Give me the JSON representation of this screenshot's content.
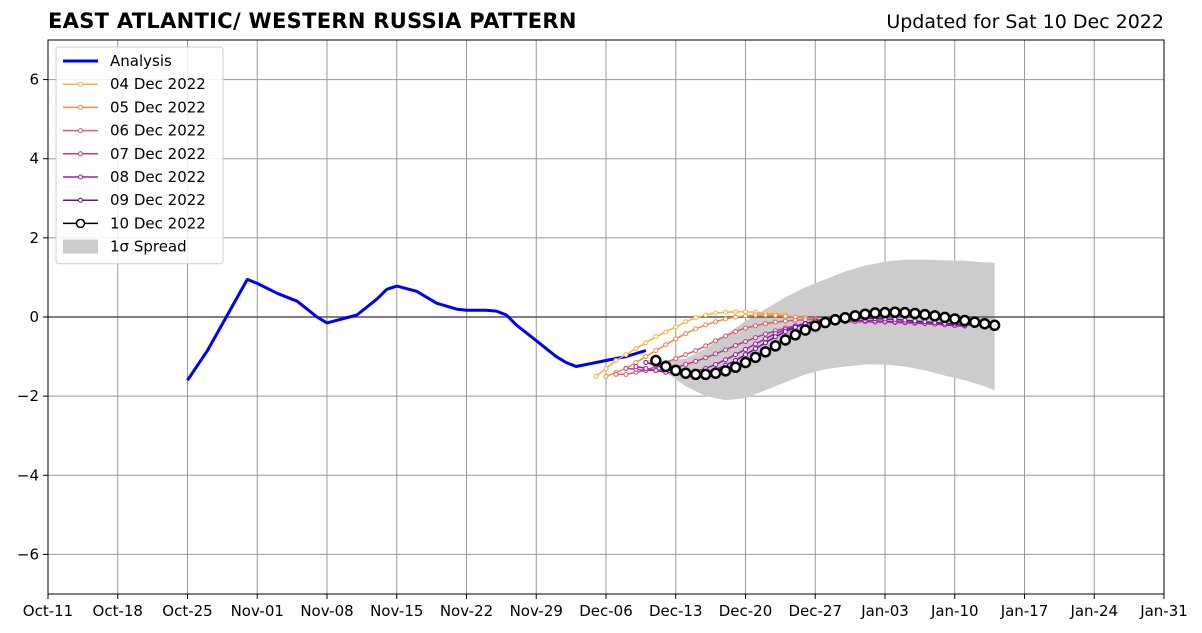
{
  "chart_data": {
    "type": "line",
    "title": "EAST ATLANTIC/ WESTERN RUSSIA PATTERN",
    "subtitle": "Updated for Sat 10 Dec 2022",
    "xlabel": "",
    "ylabel": "",
    "xlim": [
      "2022-10-11",
      "2023-01-31"
    ],
    "ylim": [
      -7,
      7
    ],
    "grid": true,
    "legend_position": "top-left",
    "x_ticks": [
      {
        "date": "2022-10-11",
        "label": "Oct-11"
      },
      {
        "date": "2022-10-18",
        "label": "Oct-18"
      },
      {
        "date": "2022-10-25",
        "label": "Oct-25"
      },
      {
        "date": "2022-11-01",
        "label": "Nov-01"
      },
      {
        "date": "2022-11-08",
        "label": "Nov-08"
      },
      {
        "date": "2022-11-15",
        "label": "Nov-15"
      },
      {
        "date": "2022-11-22",
        "label": "Nov-22"
      },
      {
        "date": "2022-11-29",
        "label": "Nov-29"
      },
      {
        "date": "2022-12-06",
        "label": "Dec-06"
      },
      {
        "date": "2022-12-13",
        "label": "Dec-13"
      },
      {
        "date": "2022-12-20",
        "label": "Dec-20"
      },
      {
        "date": "2022-12-27",
        "label": "Dec-27"
      },
      {
        "date": "2023-01-03",
        "label": "Jan-03"
      },
      {
        "date": "2023-01-10",
        "label": "Jan-10"
      },
      {
        "date": "2023-01-17",
        "label": "Jan-17"
      },
      {
        "date": "2023-01-24",
        "label": "Jan-24"
      },
      {
        "date": "2023-01-31",
        "label": "Jan-31"
      }
    ],
    "y_ticks": [
      {
        "value": 6,
        "label": "6"
      },
      {
        "value": 4,
        "label": "4"
      },
      {
        "value": 2,
        "label": "2"
      },
      {
        "value": 0,
        "label": "0"
      },
      {
        "value": -2,
        "label": "−2"
      },
      {
        "value": -4,
        "label": "−4"
      },
      {
        "value": -6,
        "label": "−6"
      }
    ],
    "colors": {
      "analysis": "#0000ee",
      "spread": "#cccccc",
      "grid": "#999999",
      "zero_line": "#555555"
    },
    "legend": [
      {
        "label": "Analysis",
        "kind": "analysis"
      },
      {
        "label": "04 Dec 2022",
        "kind": "forecast",
        "color": "#f9b233"
      },
      {
        "label": "05 Dec 2022",
        "kind": "forecast",
        "color": "#ee8a48"
      },
      {
        "label": "06 Dec 2022",
        "kind": "forecast",
        "color": "#dc5e6e"
      },
      {
        "label": "07 Dec 2022",
        "kind": "forecast",
        "color": "#bb3c89"
      },
      {
        "label": "08 Dec 2022",
        "kind": "forecast",
        "color": "#9a1fa4"
      },
      {
        "label": "09 Dec 2022",
        "kind": "forecast",
        "color": "#6e0ea6"
      },
      {
        "label": "10 Dec 2022",
        "kind": "latest"
      },
      {
        "label": "1σ Spread",
        "kind": "spread"
      }
    ],
    "analysis": {
      "name": "Analysis",
      "x": [
        "2022-10-25",
        "2022-10-27",
        "2022-10-29",
        "2022-10-31",
        "2022-11-01",
        "2022-11-03",
        "2022-11-05",
        "2022-11-06",
        "2022-11-07",
        "2022-11-08",
        "2022-11-11",
        "2022-11-13",
        "2022-11-14",
        "2022-11-15",
        "2022-11-17",
        "2022-11-19",
        "2022-11-21",
        "2022-11-22",
        "2022-11-24",
        "2022-11-25",
        "2022-11-26",
        "2022-11-27",
        "2022-11-29",
        "2022-12-01",
        "2022-12-02",
        "2022-12-03",
        "2022-12-04",
        "2022-12-06",
        "2022-12-08",
        "2022-12-10"
      ],
      "y": [
        -1.6,
        -0.85,
        0.05,
        0.95,
        0.85,
        0.6,
        0.4,
        0.2,
        0.0,
        -0.15,
        0.05,
        0.45,
        0.7,
        0.78,
        0.65,
        0.35,
        0.2,
        0.17,
        0.17,
        0.15,
        0.05,
        -0.2,
        -0.6,
        -1.0,
        -1.15,
        -1.25,
        -1.2,
        -1.1,
        -1.0,
        -0.85
      ]
    },
    "series": [
      {
        "name": "04 Dec 2022",
        "x": [
          "2022-12-05",
          "2022-12-06",
          "2022-12-07",
          "2022-12-08",
          "2022-12-09",
          "2022-12-10",
          "2022-12-11",
          "2022-12-12",
          "2022-12-13",
          "2022-12-14",
          "2022-12-15",
          "2022-12-16",
          "2022-12-17",
          "2022-12-18",
          "2022-12-19",
          "2022-12-20",
          "2022-12-21",
          "2022-12-22",
          "2022-12-23",
          "2022-12-24"
        ],
        "y": [
          -1.5,
          -1.3,
          -1.1,
          -0.95,
          -0.8,
          -0.65,
          -0.5,
          -0.38,
          -0.25,
          -0.12,
          -0.02,
          0.05,
          0.1,
          0.12,
          0.13,
          0.13,
          0.12,
          0.1,
          0.08,
          0.05
        ]
      },
      {
        "name": "05 Dec 2022",
        "x": [
          "2022-12-06",
          "2022-12-07",
          "2022-12-08",
          "2022-12-09",
          "2022-12-10",
          "2022-12-11",
          "2022-12-12",
          "2022-12-13",
          "2022-12-14",
          "2022-12-15",
          "2022-12-16",
          "2022-12-17",
          "2022-12-18",
          "2022-12-19",
          "2022-12-20",
          "2022-12-21",
          "2022-12-22",
          "2022-12-23",
          "2022-12-24",
          "2022-12-25",
          "2022-12-26",
          "2022-12-27"
        ],
        "y": [
          -1.5,
          -1.4,
          -1.3,
          -1.15,
          -1.0,
          -0.85,
          -0.7,
          -0.55,
          -0.42,
          -0.3,
          -0.2,
          -0.12,
          -0.05,
          0.0,
          0.03,
          0.05,
          0.05,
          0.04,
          0.02,
          0.0,
          -0.02,
          -0.05
        ]
      },
      {
        "name": "06 Dec 2022",
        "x": [
          "2022-12-07",
          "2022-12-08",
          "2022-12-09",
          "2022-12-10",
          "2022-12-11",
          "2022-12-12",
          "2022-12-13",
          "2022-12-14",
          "2022-12-15",
          "2022-12-16",
          "2022-12-17",
          "2022-12-18",
          "2022-12-19",
          "2022-12-20",
          "2022-12-21",
          "2022-12-22",
          "2022-12-23",
          "2022-12-24",
          "2022-12-25",
          "2022-12-26",
          "2022-12-27",
          "2022-12-28",
          "2022-12-29"
        ],
        "y": [
          -1.45,
          -1.45,
          -1.4,
          -1.35,
          -1.25,
          -1.15,
          -1.05,
          -0.95,
          -0.85,
          -0.73,
          -0.6,
          -0.48,
          -0.37,
          -0.28,
          -0.22,
          -0.17,
          -0.13,
          -0.1,
          -0.08,
          -0.07,
          -0.07,
          -0.08,
          -0.1
        ]
      },
      {
        "name": "07 Dec 2022",
        "x": [
          "2022-12-08",
          "2022-12-09",
          "2022-12-10",
          "2022-12-11",
          "2022-12-12",
          "2022-12-13",
          "2022-12-14",
          "2022-12-15",
          "2022-12-16",
          "2022-12-17",
          "2022-12-18",
          "2022-12-19",
          "2022-12-20",
          "2022-12-21",
          "2022-12-22",
          "2022-12-23",
          "2022-12-24",
          "2022-12-25",
          "2022-12-26",
          "2022-12-27",
          "2022-12-28",
          "2022-12-29",
          "2022-12-30",
          "2022-12-31",
          "2023-01-01",
          "2023-01-02",
          "2023-01-03",
          "2023-01-04",
          "2023-01-05",
          "2023-01-06",
          "2023-01-07",
          "2023-01-08",
          "2023-01-09",
          "2023-01-10"
        ],
        "y": [
          -1.3,
          -1.32,
          -1.35,
          -1.35,
          -1.33,
          -1.28,
          -1.2,
          -1.12,
          -1.03,
          -0.93,
          -0.83,
          -0.72,
          -0.62,
          -0.52,
          -0.43,
          -0.35,
          -0.28,
          -0.22,
          -0.18,
          -0.15,
          -0.13,
          -0.12,
          -0.12,
          -0.12,
          -0.12,
          -0.13,
          -0.13,
          -0.14,
          -0.15,
          -0.16,
          -0.17,
          -0.18,
          -0.19,
          -0.2
        ]
      },
      {
        "name": "08 Dec 2022",
        "x": [
          "2022-12-09",
          "2022-12-10",
          "2022-12-11",
          "2022-12-12",
          "2022-12-13",
          "2022-12-14",
          "2022-12-15",
          "2022-12-16",
          "2022-12-17",
          "2022-12-18",
          "2022-12-19",
          "2022-12-20",
          "2022-12-21",
          "2022-12-22",
          "2022-12-23",
          "2022-12-24",
          "2022-12-25",
          "2022-12-26",
          "2022-12-27",
          "2022-12-28",
          "2022-12-29",
          "2022-12-30",
          "2022-12-31",
          "2023-01-01",
          "2023-01-02",
          "2023-01-03",
          "2023-01-04",
          "2023-01-05",
          "2023-01-06",
          "2023-01-07",
          "2023-01-08",
          "2023-01-09",
          "2023-01-10",
          "2023-01-11"
        ],
        "y": [
          -1.25,
          -1.3,
          -1.35,
          -1.4,
          -1.42,
          -1.42,
          -1.38,
          -1.3,
          -1.2,
          -1.08,
          -0.95,
          -0.82,
          -0.68,
          -0.55,
          -0.42,
          -0.32,
          -0.23,
          -0.16,
          -0.12,
          -0.09,
          -0.08,
          -0.08,
          -0.08,
          -0.09,
          -0.1,
          -0.11,
          -0.12,
          -0.13,
          -0.14,
          -0.16,
          -0.18,
          -0.2,
          -0.22,
          -0.23
        ]
      },
      {
        "name": "09 Dec 2022",
        "x": [
          "2022-12-10",
          "2022-12-11",
          "2022-12-12",
          "2022-12-13",
          "2022-12-14",
          "2022-12-15",
          "2022-12-16",
          "2022-12-17",
          "2022-12-18",
          "2022-12-19",
          "2022-12-20",
          "2022-12-21",
          "2022-12-22",
          "2022-12-23",
          "2022-12-24",
          "2022-12-25",
          "2022-12-26",
          "2022-12-27",
          "2022-12-28",
          "2022-12-29",
          "2022-12-30",
          "2022-12-31",
          "2023-01-01",
          "2023-01-02",
          "2023-01-03",
          "2023-01-04",
          "2023-01-05",
          "2023-01-06",
          "2023-01-07",
          "2023-01-08",
          "2023-01-09",
          "2023-01-10",
          "2023-01-11",
          "2023-01-12"
        ],
        "y": [
          -1.15,
          -1.22,
          -1.3,
          -1.37,
          -1.42,
          -1.43,
          -1.4,
          -1.33,
          -1.22,
          -1.1,
          -0.95,
          -0.8,
          -0.65,
          -0.5,
          -0.37,
          -0.26,
          -0.17,
          -0.1,
          -0.06,
          -0.03,
          -0.02,
          -0.02,
          -0.03,
          -0.04,
          -0.05,
          -0.06,
          -0.08,
          -0.1,
          -0.12,
          -0.14,
          -0.16,
          -0.18,
          -0.2,
          -0.21
        ]
      }
    ],
    "latest": {
      "name": "10 Dec 2022",
      "x": [
        "2022-12-11",
        "2022-12-12",
        "2022-12-13",
        "2022-12-14",
        "2022-12-15",
        "2022-12-16",
        "2022-12-17",
        "2022-12-18",
        "2022-12-19",
        "2022-12-20",
        "2022-12-21",
        "2022-12-22",
        "2022-12-23",
        "2022-12-24",
        "2022-12-25",
        "2022-12-26",
        "2022-12-27",
        "2022-12-28",
        "2022-12-29",
        "2022-12-30",
        "2022-12-31",
        "2023-01-01",
        "2023-01-02",
        "2023-01-03",
        "2023-01-04",
        "2023-01-05",
        "2023-01-06",
        "2023-01-07",
        "2023-01-08",
        "2023-01-09",
        "2023-01-10",
        "2023-01-11",
        "2023-01-12",
        "2023-01-13",
        "2023-01-14"
      ],
      "y": [
        -1.1,
        -1.25,
        -1.35,
        -1.42,
        -1.45,
        -1.45,
        -1.42,
        -1.36,
        -1.27,
        -1.15,
        -1.02,
        -0.88,
        -0.73,
        -0.58,
        -0.45,
        -0.33,
        -0.23,
        -0.14,
        -0.07,
        -0.02,
        0.03,
        0.07,
        0.1,
        0.11,
        0.12,
        0.11,
        0.09,
        0.06,
        0.03,
        -0.01,
        -0.05,
        -0.09,
        -0.13,
        -0.17,
        -0.21
      ]
    },
    "spread": {
      "name": "1σ Spread",
      "x": [
        "2022-12-10",
        "2022-12-12",
        "2022-12-14",
        "2022-12-16",
        "2022-12-18",
        "2022-12-20",
        "2022-12-22",
        "2022-12-24",
        "2022-12-26",
        "2022-12-28",
        "2022-12-30",
        "2023-01-01",
        "2023-01-03",
        "2023-01-05",
        "2023-01-07",
        "2023-01-09",
        "2023-01-11",
        "2023-01-13",
        "2023-01-14"
      ],
      "upper": [
        -1.1,
        -1.1,
        -1.05,
        -0.8,
        -0.45,
        -0.1,
        0.2,
        0.5,
        0.75,
        0.95,
        1.15,
        1.3,
        1.4,
        1.45,
        1.45,
        1.43,
        1.42,
        1.38,
        1.37
      ],
      "lower": [
        -1.1,
        -1.4,
        -1.75,
        -2.0,
        -2.1,
        -2.05,
        -1.85,
        -1.65,
        -1.45,
        -1.32,
        -1.25,
        -1.2,
        -1.2,
        -1.25,
        -1.35,
        -1.48,
        -1.6,
        -1.75,
        -1.85
      ]
    }
  }
}
